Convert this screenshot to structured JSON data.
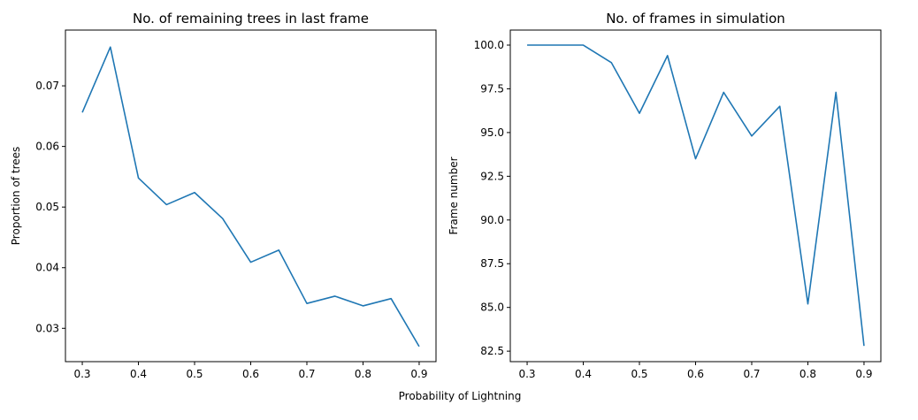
{
  "figure": {
    "shared_xlabel": "Probability of Lightning"
  },
  "colors": {
    "line": "#1f77b4",
    "axes": "#000000",
    "background": "#ffffff"
  },
  "chart_data": [
    {
      "type": "line",
      "title": "No. of remaining trees in last frame",
      "xlabel": "",
      "ylabel": "Proportion of trees",
      "x": [
        0.3,
        0.35,
        0.4,
        0.45,
        0.5,
        0.55,
        0.6,
        0.65,
        0.7,
        0.75,
        0.8,
        0.85,
        0.9
      ],
      "series": [
        {
          "values": [
            0.0656,
            0.0764,
            0.0548,
            0.0504,
            0.0524,
            0.0481,
            0.0409,
            0.0429,
            0.0341,
            0.0353,
            0.0337,
            0.0349,
            0.027
          ]
        }
      ],
      "xticks": [
        0.3,
        0.4,
        0.5,
        0.6,
        0.7,
        0.8,
        0.9
      ],
      "xtick_labels": [
        "0.3",
        "0.4",
        "0.5",
        "0.6",
        "0.7",
        "0.8",
        "0.9"
      ],
      "yticks": [
        0.03,
        0.04,
        0.05,
        0.06,
        0.07
      ],
      "ytick_labels": [
        "0.03",
        "0.04",
        "0.05",
        "0.06",
        "0.07"
      ],
      "xlim": [
        0.27,
        0.93
      ],
      "ylim": [
        0.0245,
        0.0792
      ],
      "grid": false,
      "legend": "none"
    },
    {
      "type": "line",
      "title": "No. of frames in simulation",
      "xlabel": "",
      "ylabel": "Frame number",
      "x": [
        0.3,
        0.35,
        0.4,
        0.45,
        0.5,
        0.55,
        0.6,
        0.65,
        0.7,
        0.75,
        0.8,
        0.85,
        0.9
      ],
      "series": [
        {
          "values": [
            100.0,
            100.0,
            100.0,
            99.0,
            96.1,
            99.4,
            93.5,
            97.3,
            94.8,
            96.5,
            85.2,
            97.3,
            82.8
          ]
        }
      ],
      "xticks": [
        0.3,
        0.4,
        0.5,
        0.6,
        0.7,
        0.8,
        0.9
      ],
      "xtick_labels": [
        "0.3",
        "0.4",
        "0.5",
        "0.6",
        "0.7",
        "0.8",
        "0.9"
      ],
      "yticks": [
        82.5,
        85.0,
        87.5,
        90.0,
        92.5,
        95.0,
        97.5,
        100.0
      ],
      "ytick_labels": [
        "82.5",
        "85.0",
        "87.5",
        "90.0",
        "92.5",
        "95.0",
        "97.5",
        "100.0"
      ],
      "xlim": [
        0.27,
        0.93
      ],
      "ylim": [
        81.9,
        100.86
      ],
      "grid": false,
      "legend": "none"
    }
  ]
}
